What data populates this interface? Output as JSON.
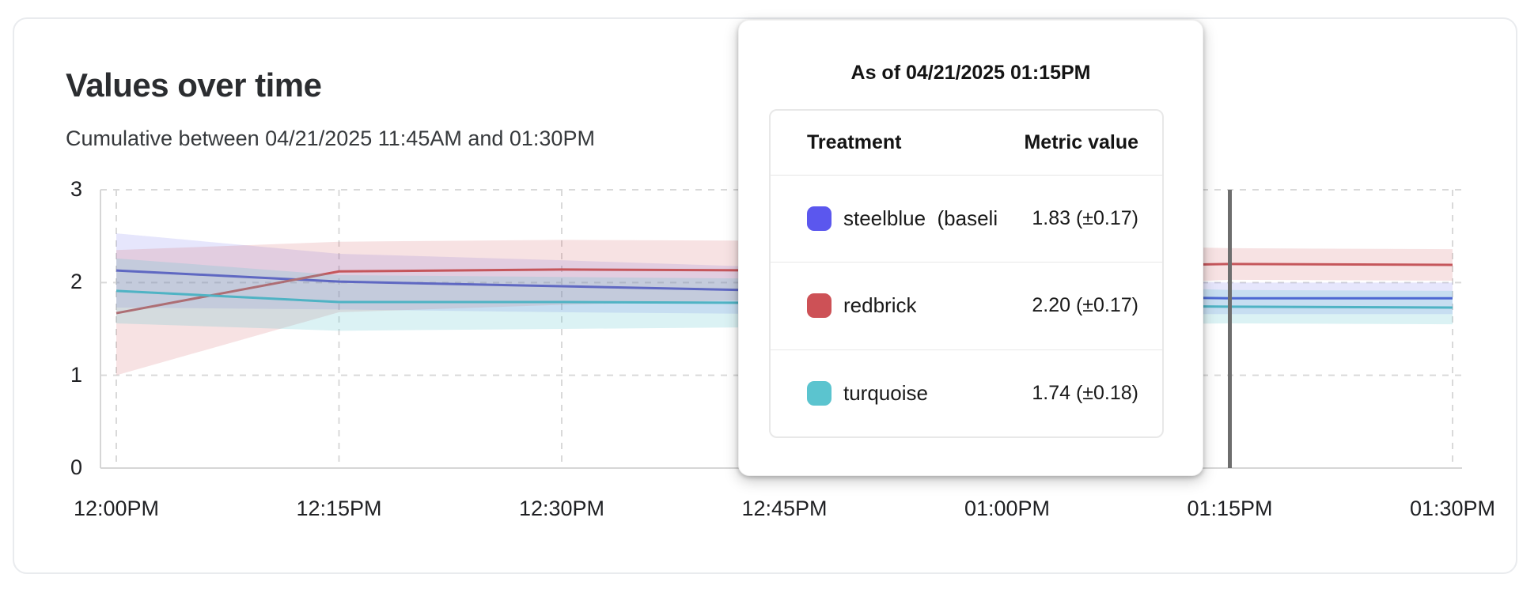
{
  "card": {
    "title": "Values over time",
    "subtitle": "Cumulative between 04/21/2025 11:45AM and 01:30PM"
  },
  "tooltip": {
    "title": "As of 04/21/2025 01:15PM",
    "col_treatment": "Treatment",
    "col_metric": "Metric value",
    "rows": [
      {
        "label": "steelblue  (baseli",
        "value": "1.83 (±0.17)",
        "swatch": "#5b57ee"
      },
      {
        "label": "redbrick",
        "value": "2.20 (±0.17)",
        "swatch": "#cd5156"
      },
      {
        "label": "turquoise",
        "value": "1.74 (±0.18)",
        "swatch": "#5bc4cf"
      }
    ]
  },
  "chart_data": {
    "type": "line",
    "title": "Values over time",
    "subtitle": "Cumulative between 04/21/2025 11:45AM and 01:30PM",
    "xlabel": "",
    "ylabel": "",
    "x_tick_labels": [
      "12:00PM",
      "12:15PM",
      "12:30PM",
      "12:45PM",
      "01:00PM",
      "01:15PM",
      "01:30PM"
    ],
    "y_ticks": [
      0,
      1,
      2,
      3
    ],
    "ylim": [
      0,
      3
    ],
    "grid": true,
    "legend_position": "tooltip",
    "cursor_index": 5,
    "cursor_time": "01:15PM",
    "series": [
      {
        "id": "steelblue",
        "name": "steelblue (baseline)",
        "color": "#4a4fd4",
        "fill": "rgba(99,97,238,0.16)",
        "values": [
          2.13,
          2.01,
          1.96,
          1.91,
          1.86,
          1.83,
          1.83
        ],
        "low": [
          1.73,
          1.71,
          1.68,
          1.66,
          1.66,
          1.66,
          1.66
        ],
        "high": [
          2.53,
          2.31,
          2.24,
          2.16,
          2.06,
          2.0,
          2.0
        ]
      },
      {
        "id": "redbrick",
        "name": "redbrick",
        "color": "#c5565b",
        "fill": "rgba(205,82,86,0.17)",
        "values": [
          1.67,
          2.12,
          2.14,
          2.13,
          2.16,
          2.2,
          2.19
        ],
        "low": [
          1.0,
          1.68,
          1.76,
          1.82,
          1.93,
          2.03,
          2.02
        ],
        "high": [
          2.35,
          2.44,
          2.46,
          2.45,
          2.42,
          2.37,
          2.36
        ]
      },
      {
        "id": "turquoise",
        "name": "turquoise",
        "color": "#4fb3c4",
        "fill": "rgba(91,196,207,0.22)",
        "values": [
          1.91,
          1.79,
          1.79,
          1.78,
          1.76,
          1.74,
          1.73
        ],
        "low": [
          1.56,
          1.48,
          1.5,
          1.52,
          1.54,
          1.56,
          1.55
        ],
        "high": [
          2.26,
          2.08,
          2.06,
          2.04,
          1.99,
          1.92,
          1.91
        ]
      }
    ],
    "colors": {
      "grid": "#d9d9d9",
      "axis": "#d6d6d6",
      "cursor": "#6e6e6e"
    }
  }
}
